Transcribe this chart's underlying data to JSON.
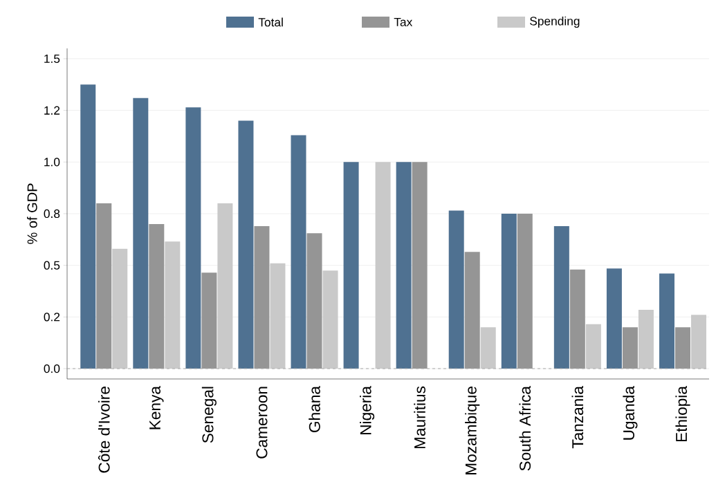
{
  "chart_data": {
    "type": "bar",
    "ylabel": "% of GDP",
    "categories": [
      "Côte d'Ivoire",
      "Kenya",
      "Senegal",
      "Cameroon",
      "Ghana",
      "Nigeria",
      "Mauritius",
      "Mozambique",
      "South Africa",
      "Tanzania",
      "Uganda",
      "Ethiopia"
    ],
    "series": [
      {
        "name": "Total",
        "color": "#4f7191",
        "values": [
          1.375,
          1.31,
          1.265,
          1.2,
          1.13,
          1.0,
          1.0,
          0.765,
          0.75,
          0.69,
          0.485,
          0.46
        ]
      },
      {
        "name": "Tax",
        "color": "#959595",
        "values": [
          0.8,
          0.7,
          0.465,
          0.69,
          0.655,
          null,
          1.0,
          0.565,
          0.75,
          0.48,
          0.2,
          0.2
        ]
      },
      {
        "name": "Spending",
        "color": "#c9c9c9",
        "values": [
          0.58,
          0.615,
          0.8,
          0.51,
          0.475,
          1.0,
          null,
          0.2,
          null,
          0.215,
          0.285,
          0.26
        ]
      }
    ],
    "ylim": [
      -0.05,
      1.55
    ],
    "yticks": [
      {
        "value": 0,
        "label": "0.0"
      },
      {
        "value": 0.25,
        "label": "0.2"
      },
      {
        "value": 0.5,
        "label": "0.5"
      },
      {
        "value": 0.75,
        "label": "0.8"
      },
      {
        "value": 1.0,
        "label": "1.0"
      },
      {
        "value": 1.25,
        "label": "1.2"
      },
      {
        "value": 1.5,
        "label": "1.5"
      }
    ],
    "ref_lines": [
      {
        "axis": "y",
        "value": 0,
        "color": "#aaaaaa",
        "line_style": "dashed"
      }
    ],
    "grid": "y",
    "legend": "top"
  }
}
